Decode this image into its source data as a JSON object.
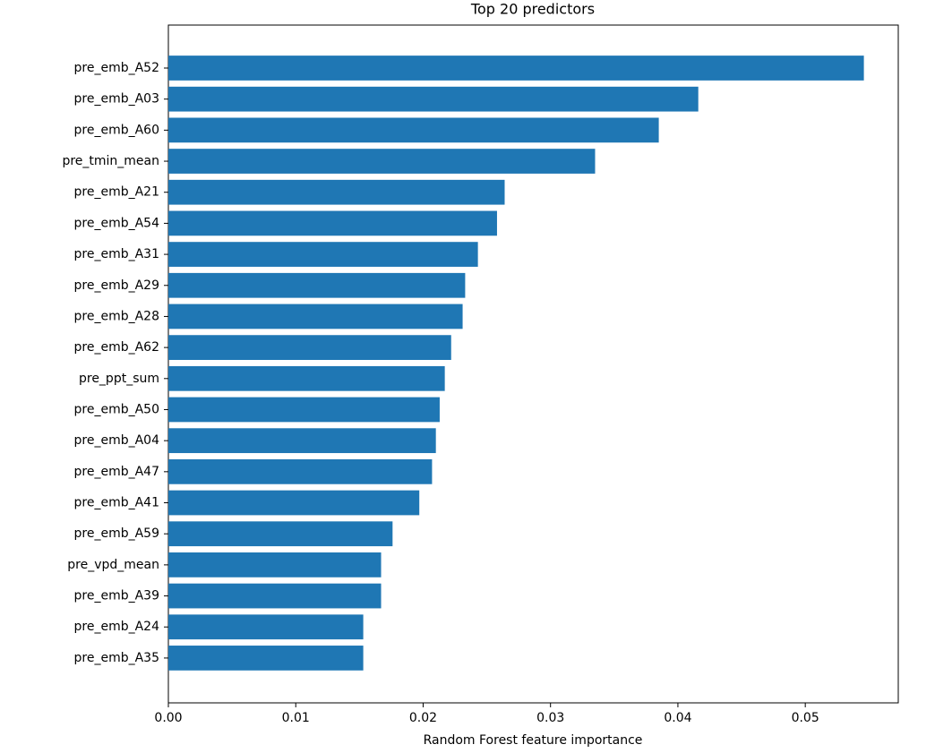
{
  "chart_data": {
    "type": "barh",
    "title": "Top 20 predictors",
    "xlabel": "Random Forest feature importance",
    "categories": [
      "pre_emb_A52",
      "pre_emb_A03",
      "pre_emb_A60",
      "pre_tmin_mean",
      "pre_emb_A21",
      "pre_emb_A54",
      "pre_emb_A31",
      "pre_emb_A29",
      "pre_emb_A28",
      "pre_emb_A62",
      "pre_ppt_sum",
      "pre_emb_A50",
      "pre_emb_A04",
      "pre_emb_A47",
      "pre_emb_A41",
      "pre_emb_A59",
      "pre_vpd_mean",
      "pre_emb_A39",
      "pre_emb_A24",
      "pre_emb_A35"
    ],
    "values": [
      0.0546,
      0.0416,
      0.0385,
      0.0335,
      0.0264,
      0.0258,
      0.0243,
      0.0233,
      0.0231,
      0.0222,
      0.0217,
      0.0213,
      0.021,
      0.0207,
      0.0197,
      0.0176,
      0.0167,
      0.0167,
      0.0153,
      0.0153
    ],
    "color": "#1f77b4",
    "xlim": [
      0,
      0.0573
    ],
    "xticks": [
      {
        "value": 0,
        "label": "0.00"
      },
      {
        "value": 0.01,
        "label": "0.01"
      },
      {
        "value": 0.02,
        "label": "0.02"
      },
      {
        "value": 0.03,
        "label": "0.03"
      },
      {
        "value": 0.04,
        "label": "0.04"
      },
      {
        "value": 0.05,
        "label": "0.05"
      }
    ]
  }
}
